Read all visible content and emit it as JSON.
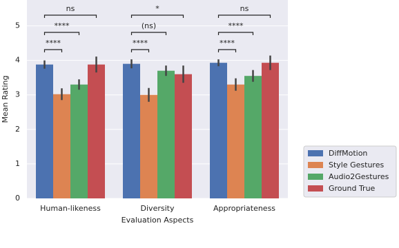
{
  "chart_data": {
    "type": "bar",
    "xlabel": "Evaluation Aspects",
    "ylabel": "Mean Rating",
    "categories": [
      "Human-likeness",
      "Diversity",
      "Appropriateness"
    ],
    "series": [
      {
        "name": "DiffMotion",
        "color": "#4c72b0",
        "values": [
          3.88,
          3.9,
          3.93
        ],
        "errors": [
          0.12,
          0.13,
          0.1
        ]
      },
      {
        "name": "Style Gestures",
        "color": "#dd8452",
        "values": [
          3.02,
          3.0,
          3.3
        ],
        "errors": [
          0.17,
          0.2,
          0.18
        ]
      },
      {
        "name": "Audio2Gestures",
        "color": "#55a868",
        "values": [
          3.3,
          3.7,
          3.55
        ],
        "errors": [
          0.15,
          0.15,
          0.17
        ]
      },
      {
        "name": "Ground True",
        "color": "#c44e52",
        "values": [
          3.88,
          3.6,
          3.93
        ],
        "errors": [
          0.23,
          0.25,
          0.21
        ]
      }
    ],
    "brackets": [
      [
        {
          "from": 0,
          "to": 1,
          "label": "****"
        },
        {
          "from": 0,
          "to": 2,
          "label": "****"
        },
        {
          "from": 0,
          "to": 3,
          "label": "ns"
        }
      ],
      [
        {
          "from": 0,
          "to": 1,
          "label": "****"
        },
        {
          "from": 0,
          "to": 2,
          "label": "(ns)"
        },
        {
          "from": 0,
          "to": 3,
          "label": "*"
        }
      ],
      [
        {
          "from": 0,
          "to": 1,
          "label": "****"
        },
        {
          "from": 0,
          "to": 2,
          "label": "****"
        },
        {
          "from": 0,
          "to": 3,
          "label": "ns"
        }
      ]
    ],
    "ylim": [
      0,
      5.75
    ],
    "yticks": [
      0,
      1,
      2,
      3,
      4,
      5
    ],
    "grid": true,
    "legend": "lower right outside"
  }
}
